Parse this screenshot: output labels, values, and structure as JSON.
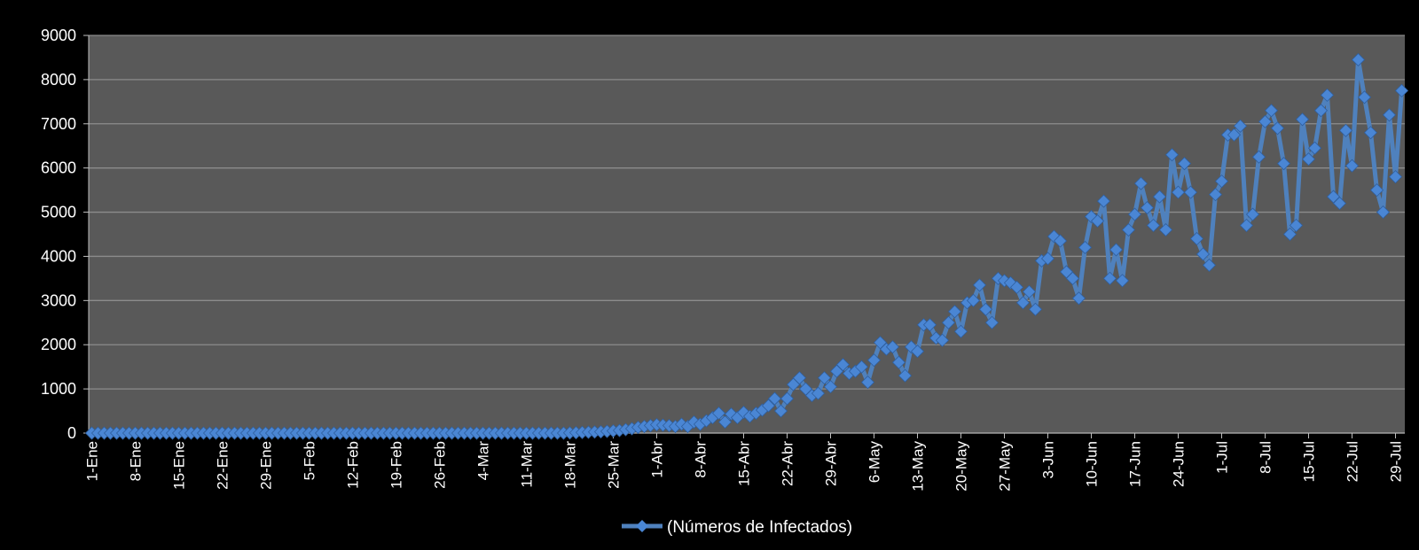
{
  "chart_data": {
    "type": "line",
    "title": "",
    "xlabel": "",
    "ylabel": "",
    "ylim": [
      0,
      9000
    ],
    "yticks": [
      0,
      1000,
      2000,
      3000,
      4000,
      5000,
      6000,
      7000,
      8000,
      9000
    ],
    "xtick_labels": [
      "1-Ene",
      "8-Ene",
      "15-Ene",
      "22-Ene",
      "29-Ene",
      "5-Feb",
      "12-Feb",
      "19-Feb",
      "26-Feb",
      "4-Mar",
      "11-Mar",
      "18-Mar",
      "25-Mar",
      "1-Abr",
      "8-Abr",
      "15-Abr",
      "22-Abr",
      "29-Abr",
      "6-May",
      "13-May",
      "20-May",
      "27-May",
      "3-Jun",
      "10-Jun",
      "17-Jun",
      "24-Jun",
      "1-Jul",
      "8-Jul",
      "15-Jul",
      "22-Jul",
      "29-Jul"
    ],
    "grid": true,
    "legend_position": "bottom-center",
    "colors": {
      "background": "#000000",
      "plot_area": "#595959",
      "gridline": "#8c8c8c",
      "series": "#4f81bd",
      "marker": "#4a86d4"
    },
    "series": [
      {
        "name": "(Números de Infectados)",
        "values": [
          0,
          0,
          0,
          0,
          0,
          0,
          0,
          0,
          0,
          0,
          0,
          0,
          0,
          0,
          0,
          0,
          0,
          0,
          0,
          0,
          0,
          0,
          0,
          0,
          0,
          0,
          0,
          0,
          0,
          0,
          0,
          0,
          0,
          0,
          0,
          0,
          0,
          0,
          0,
          0,
          0,
          0,
          0,
          0,
          0,
          0,
          0,
          0,
          0,
          0,
          0,
          0,
          0,
          0,
          0,
          0,
          0,
          0,
          0,
          0,
          0,
          0,
          0,
          0,
          0,
          0,
          0,
          0,
          0,
          0,
          0,
          0,
          0,
          0,
          0,
          0,
          0,
          5,
          10,
          15,
          20,
          25,
          30,
          40,
          50,
          60,
          80,
          100,
          130,
          150,
          170,
          190,
          180,
          170,
          150,
          200,
          150,
          250,
          200,
          280,
          350,
          450,
          250,
          430,
          350,
          470,
          380,
          450,
          520,
          620,
          780,
          500,
          780,
          1100,
          1250,
          1000,
          850,
          900,
          1250,
          1050,
          1400,
          1550,
          1350,
          1400,
          1500,
          1150,
          1650,
          2050,
          1900,
          1950,
          1600,
          1300,
          1950,
          1850,
          2450,
          2450,
          2150,
          2100,
          2500,
          2750,
          2300,
          2950,
          3000,
          3350,
          2800,
          2500,
          3500,
          3450,
          3400,
          3300,
          2950,
          3200,
          2800,
          3900,
          3950,
          4450,
          4350,
          3650,
          3500,
          3050,
          4200,
          4900,
          4800,
          5250,
          3500,
          4150,
          3450,
          4600,
          4950,
          5650,
          5100,
          4700,
          5350,
          4600,
          6300,
          5450,
          6100,
          5450,
          4400,
          4050,
          3800,
          5400,
          5700,
          6750,
          6750,
          6950,
          4700,
          4950,
          6250,
          7050,
          7300,
          6900,
          6100,
          4500,
          4700,
          7100,
          6200,
          6450,
          7300,
          7650,
          5350,
          5200,
          6850,
          6050,
          8450,
          7600,
          6800,
          5500,
          5000,
          7200,
          5800,
          7750
        ]
      }
    ]
  }
}
